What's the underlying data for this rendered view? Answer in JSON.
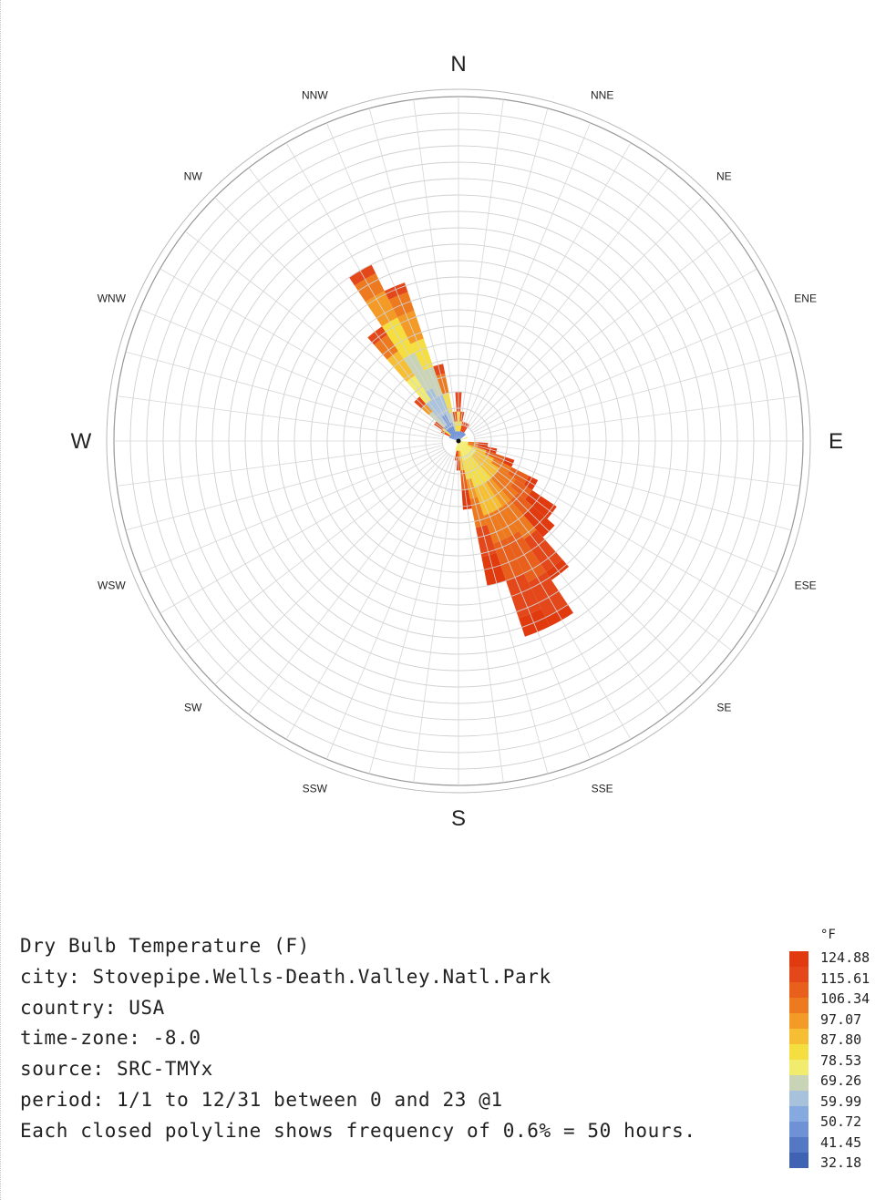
{
  "chart_data": {
    "type": "windrose",
    "directions": [
      "N",
      "NNE",
      "NE",
      "ENE",
      "E",
      "ESE",
      "SE",
      "SSE",
      "S",
      "SSW",
      "SW",
      "WSW",
      "W",
      "WNW",
      "NW",
      "NNW"
    ],
    "cardinal_labels": [
      "N",
      "E",
      "S",
      "W"
    ],
    "frequency_step_hours": 50,
    "frequency_step_percent": 0.6,
    "rings": 21,
    "sector_sub_divisions": 3,
    "stacks": [
      {
        "angle_deg": 0,
        "bands": [
          1,
          2,
          2
        ]
      },
      {
        "angle_deg": 7.5,
        "bands": [
          1,
          1,
          1
        ]
      },
      {
        "angle_deg": 15,
        "bands": [
          1,
          1
        ]
      },
      {
        "angle_deg": 22.5,
        "bands": [
          1,
          1
        ]
      },
      {
        "angle_deg": 30,
        "bands": [
          1,
          1
        ]
      },
      {
        "angle_deg": 37.5,
        "bands": [
          1
        ]
      },
      {
        "angle_deg": 45,
        "bands": [
          1
        ]
      },
      {
        "angle_deg": 67.5,
        "bands": [
          1
        ]
      },
      {
        "angle_deg": 90,
        "bands": [
          0,
          0
        ]
      },
      {
        "angle_deg": 97.5,
        "bands": [
          1,
          1,
          1
        ]
      },
      {
        "angle_deg": 105,
        "bands": [
          1,
          1,
          2
        ]
      },
      {
        "angle_deg": 112.5,
        "bands": [
          1,
          2,
          2,
          1
        ]
      },
      {
        "angle_deg": 120,
        "bands": [
          2,
          2,
          2,
          2,
          1
        ]
      },
      {
        "angle_deg": 127.5,
        "bands": [
          2,
          3,
          2,
          2,
          3
        ]
      },
      {
        "angle_deg": 135,
        "bands": [
          2,
          3,
          3,
          2,
          3
        ]
      },
      {
        "angle_deg": 142.5,
        "bands": [
          2,
          3,
          3,
          4,
          4,
          1
        ]
      },
      {
        "angle_deg": 150,
        "bands": [
          2,
          3,
          3,
          3,
          5,
          4,
          1
        ]
      },
      {
        "angle_deg": 157.5,
        "bands": [
          2,
          3,
          3,
          3,
          4,
          4,
          2
        ]
      },
      {
        "angle_deg": 165,
        "bands": [
          2,
          2,
          2,
          3,
          3,
          3
        ]
      },
      {
        "angle_deg": 172.5,
        "bands": [
          1,
          2,
          2,
          2
        ]
      },
      {
        "angle_deg": 180,
        "bands": [
          1,
          1,
          1
        ]
      },
      {
        "angle_deg": 187.5,
        "bands": [
          1,
          1
        ]
      },
      {
        "angle_deg": 195,
        "bands": [
          1
        ]
      },
      {
        "angle_deg": 292.5,
        "bands": [
          1
        ]
      },
      {
        "angle_deg": 300,
        "bands": [
          1,
          1
        ]
      },
      {
        "angle_deg": 307.5,
        "bands": [
          1,
          1,
          1
        ]
      },
      {
        "angle_deg": 315,
        "bands": [
          2,
          2,
          1,
          1
        ]
      },
      {
        "angle_deg": 322.5,
        "bands": [
          2,
          3,
          3,
          3,
          2,
          1
        ]
      },
      {
        "angle_deg": 330,
        "bands": [
          3,
          3,
          4,
          4,
          3,
          2,
          1
        ]
      },
      {
        "angle_deg": 337.5,
        "bands": [
          2,
          3,
          3,
          3,
          3,
          2,
          1
        ]
      },
      {
        "angle_deg": 345,
        "bands": [
          1,
          2,
          2,
          2,
          1
        ]
      },
      {
        "angle_deg": 352.5,
        "bands": [
          1,
          1,
          1
        ]
      }
    ],
    "legend": {
      "unit": "°F",
      "values": [
        "124.88",
        "115.61",
        "106.34",
        "97.07",
        "87.80",
        "78.53",
        "69.26",
        "59.99",
        "50.72",
        "41.45",
        "32.18"
      ],
      "colors": [
        "#e03a0e",
        "#e4471a",
        "#e9601d",
        "#ee7a20",
        "#f39a27",
        "#f6bf33",
        "#f5de40",
        "#f2ec6e",
        "#c9d3b6",
        "#a9c2dc",
        "#86a9e0",
        "#6f91d6",
        "#5478c4",
        "#3f62b2"
      ]
    }
  },
  "info": {
    "line1": "Dry Bulb Temperature (F)",
    "line2": "city: Stovepipe.Wells-Death.Valley.Natl.Park",
    "line3": "country: USA",
    "line4": "time-zone: -8.0",
    "line5": "source: SRC-TMYx",
    "line6": "period: 1/1 to 12/31 between 0 and 23 @1",
    "line7": "Each closed polyline shows frequency of 0.6% = 50 hours."
  }
}
